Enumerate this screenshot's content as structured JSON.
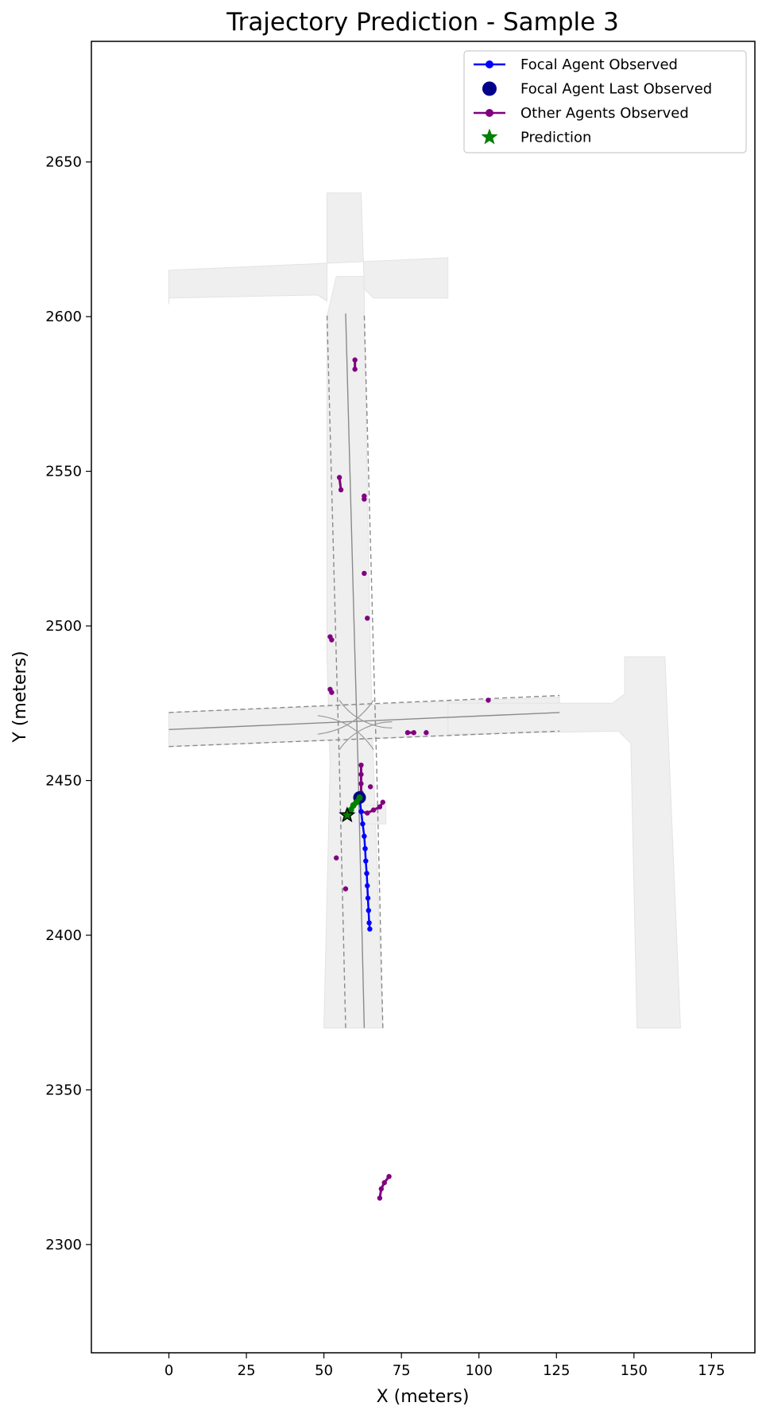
{
  "chart_data": {
    "type": "scatter",
    "title": "Trajectory Prediction - Sample 3",
    "xlabel": "X (meters)",
    "ylabel": "Y (meters)",
    "xlim": [
      -25,
      189
    ],
    "ylim": [
      2265,
      2689
    ],
    "x_ticks": [
      0,
      25,
      50,
      75,
      100,
      125,
      150,
      175
    ],
    "y_ticks": [
      2300,
      2350,
      2400,
      2450,
      2500,
      2550,
      2600,
      2650
    ],
    "grid": false,
    "legend_position": "upper-right",
    "legend": [
      {
        "label": "Focal Agent Observed",
        "marker": "line-dot",
        "color": "#0000ff"
      },
      {
        "label": "Focal Agent Last Observed",
        "marker": "big-dot",
        "color": "#00008b"
      },
      {
        "label": "Other Agents Observed",
        "marker": "line-dot",
        "color": "#800080"
      },
      {
        "label": "Prediction",
        "marker": "star",
        "color": "#008000"
      }
    ],
    "map": {
      "road_fill": "#efefef",
      "road_edge": "#e3e3e3",
      "lane_color": "#8a8a8a",
      "drivable_areas": [
        [
          [
            50,
            2370
          ],
          [
            69,
            2370
          ],
          [
            66,
            2455
          ],
          [
            65,
            2490
          ],
          [
            63,
            2600
          ],
          [
            63,
            2613
          ],
          [
            54,
            2613
          ],
          [
            51,
            2600
          ],
          [
            51,
            2490
          ],
          [
            52,
            2455
          ]
        ],
        [
          [
            0,
            2461
          ],
          [
            126,
            2466
          ],
          [
            126,
            2477
          ],
          [
            0,
            2472
          ]
        ],
        [
          [
            0,
            2606
          ],
          [
            48,
            2607
          ],
          [
            51,
            2605
          ],
          [
            51,
            2640
          ],
          [
            62,
            2640
          ],
          [
            63,
            2609
          ],
          [
            66,
            2606
          ],
          [
            90,
            2606
          ],
          [
            90,
            2619
          ],
          [
            0,
            2615
          ],
          [
            0,
            2604
          ]
        ],
        [
          [
            90,
            2465
          ],
          [
            145,
            2466
          ],
          [
            149,
            2462
          ],
          [
            151,
            2370
          ],
          [
            165,
            2370
          ],
          [
            160,
            2490
          ],
          [
            147,
            2490
          ],
          [
            147,
            2478
          ],
          [
            143,
            2475
          ],
          [
            90,
            2475
          ]
        ],
        [
          [
            62,
            2436
          ],
          [
            70,
            2436
          ],
          [
            70,
            2442
          ],
          [
            62,
            2442
          ]
        ]
      ],
      "lanes_solid": [
        [
          [
            63,
            2370
          ],
          [
            61,
            2455
          ],
          [
            60,
            2490
          ],
          [
            57,
            2601
          ]
        ],
        [
          [
            0,
            2466.5
          ],
          [
            126,
            2472
          ]
        ]
      ],
      "lanes_dashed": [
        [
          [
            57,
            2370
          ],
          [
            55,
            2455
          ],
          [
            54,
            2490
          ],
          [
            51,
            2601
          ]
        ],
        [
          [
            69,
            2370
          ],
          [
            67,
            2455
          ],
          [
            66,
            2490
          ],
          [
            63,
            2601
          ]
        ],
        [
          [
            0,
            2461
          ],
          [
            126,
            2466
          ]
        ],
        [
          [
            0,
            2472
          ],
          [
            126,
            2477.5
          ]
        ]
      ],
      "turn_curves": [
        [
          [
            55,
            2460
          ],
          [
            59,
            2466
          ],
          [
            66,
            2469
          ],
          [
            72,
            2469
          ]
        ],
        [
          [
            66,
            2460
          ],
          [
            62,
            2466
          ],
          [
            56,
            2470
          ],
          [
            48,
            2471
          ]
        ],
        [
          [
            55,
            2476
          ],
          [
            59,
            2470
          ],
          [
            66,
            2467
          ],
          [
            72,
            2467
          ]
        ],
        [
          [
            66,
            2476
          ],
          [
            62,
            2470
          ],
          [
            56,
            2466
          ],
          [
            48,
            2465
          ]
        ]
      ]
    },
    "series": [
      {
        "name": "Focal Agent Observed",
        "color": "#0000ff",
        "points": [
          [
            61.5,
            2444.5
          ],
          [
            62.0,
            2440
          ],
          [
            62.5,
            2436
          ],
          [
            63.0,
            2432
          ],
          [
            63.3,
            2428
          ],
          [
            63.5,
            2424
          ],
          [
            63.8,
            2420
          ],
          [
            64.0,
            2416
          ],
          [
            64.2,
            2412
          ],
          [
            64.4,
            2408
          ],
          [
            64.6,
            2404
          ],
          [
            64.8,
            2402
          ]
        ]
      },
      {
        "name": "Focal Agent Last Observed",
        "color": "#00008b",
        "points": [
          [
            61.5,
            2444.5
          ]
        ]
      },
      {
        "name": "Other Agents Observed",
        "color": "#800080",
        "tracks": [
          [
            [
              62,
              2455
            ],
            [
              62,
              2452
            ],
            [
              62,
              2449
            ],
            [
              62,
              2446
            ]
          ],
          [
            [
              62,
              2440
            ],
            [
              64,
              2439.5
            ],
            [
              66,
              2440.5
            ],
            [
              68,
              2441.5
            ],
            [
              69,
              2443
            ]
          ],
          [
            [
              60,
              2586
            ],
            [
              60,
              2583
            ]
          ],
          [
            [
              55,
              2548
            ],
            [
              55.5,
              2544
            ]
          ],
          [
            [
              63,
              2542
            ],
            [
              63,
              2541
            ]
          ],
          [
            [
              63,
              2517
            ]
          ],
          [
            [
              64,
              2502.5
            ]
          ],
          [
            [
              52,
              2496.5
            ],
            [
              52.5,
              2495.5
            ]
          ],
          [
            [
              52,
              2479.5
            ],
            [
              52.5,
              2478.5
            ]
          ],
          [
            [
              103,
              2476
            ]
          ],
          [
            [
              77,
              2465.5
            ],
            [
              79,
              2465.5
            ]
          ],
          [
            [
              83,
              2465.5
            ]
          ],
          [
            [
              65,
              2448
            ]
          ],
          [
            [
              54,
              2425
            ]
          ],
          [
            [
              57,
              2415
            ]
          ],
          [
            [
              68,
              2315
            ],
            [
              68.5,
              2318
            ],
            [
              69.5,
              2320
            ],
            [
              71,
              2322
            ]
          ]
        ]
      },
      {
        "name": "Prediction",
        "color": "#008000",
        "points": [
          [
            61.5,
            2444.5
          ],
          [
            60.5,
            2443
          ],
          [
            59.5,
            2442
          ],
          [
            58.7,
            2440.5
          ],
          [
            58,
            2439.5
          ],
          [
            57.5,
            2438.8
          ]
        ],
        "final_star": [
          57.5,
          2438.8
        ]
      }
    ]
  }
}
